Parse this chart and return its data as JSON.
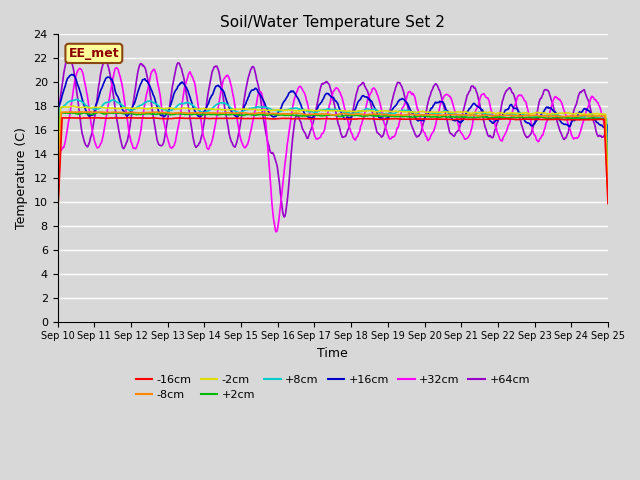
{
  "title": "Soil/Water Temperature Set 2",
  "xlabel": "Time",
  "ylabel": "Temperature (C)",
  "xlim": [
    0,
    15
  ],
  "ylim": [
    0,
    24
  ],
  "yticks": [
    0,
    2,
    4,
    6,
    8,
    10,
    12,
    14,
    16,
    18,
    20,
    22,
    24
  ],
  "xtick_labels": [
    "Sep 10",
    "Sep 11",
    "Sep 12",
    "Sep 13",
    "Sep 14",
    "Sep 15",
    "Sep 16",
    "Sep 17",
    "Sep 18",
    "Sep 19",
    "Sep 20",
    "Sep 21",
    "Sep 22",
    "Sep 23",
    "Sep 24",
    "Sep 25"
  ],
  "background_color": "#d8d8d8",
  "plot_bg_color": "#d8d8d8",
  "grid_color": "#ffffff",
  "series": {
    "-16cm": {
      "color": "#ff0000",
      "lw": 1.2
    },
    "-8cm": {
      "color": "#ff8800",
      "lw": 1.2
    },
    "-2cm": {
      "color": "#dddd00",
      "lw": 1.2
    },
    "+2cm": {
      "color": "#00bb00",
      "lw": 1.2
    },
    "+8cm": {
      "color": "#00cccc",
      "lw": 1.2
    },
    "+16cm": {
      "color": "#0000cc",
      "lw": 1.2
    },
    "+32cm": {
      "color": "#ff00ff",
      "lw": 1.2
    },
    "+64cm": {
      "color": "#9900cc",
      "lw": 1.2
    }
  },
  "annotation_text": "EE_met",
  "annotation_box_color": "#ffff99",
  "annotation_border_color": "#8B4513",
  "legend_row1": [
    "-16cm",
    "-8cm",
    "-2cm",
    "+2cm",
    "+8cm",
    "+16cm"
  ],
  "legend_row2": [
    "+32cm",
    "+64cm"
  ]
}
